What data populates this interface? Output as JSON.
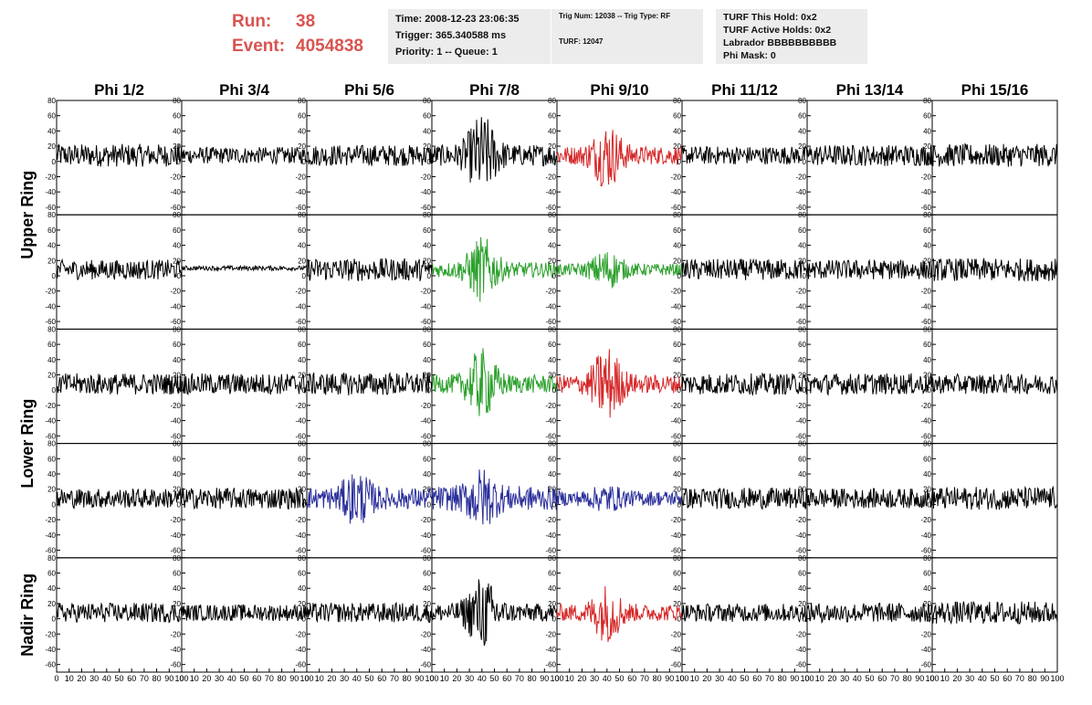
{
  "header": {
    "run_label": "Run:",
    "run_value": "38",
    "event_label": "Event:",
    "event_value": "4054838",
    "time_line": "Time: 2008-12-23 23:06:35",
    "trigger_line": "Trigger: 365.340588 ms",
    "priority_line": "Priority: 1 -- Queue: 1",
    "trig_num_line": "Trig Num: 12038 -- Trig Type: RF",
    "turf_line": "TURF: 12047",
    "turf_this_hold": "TURF This Hold: 0x2",
    "turf_active_holds": "TURF Active Holds: 0x2",
    "labrador": "Labrador BBBBBBBBBB",
    "phi_mask": "Phi Mask: 0"
  },
  "colors": {
    "background": "#ffffff",
    "axis": "#000000",
    "default_trace": "#000000",
    "red_trace": "#d62728",
    "green_trace": "#2ca02c",
    "blue_trace": "#2b2f9a",
    "run_text": "#d9534f",
    "info_box_bg": "#ececec"
  },
  "chart_data": {
    "type": "line",
    "phi_labels": [
      "Phi 1/2",
      "Phi 3/4",
      "Phi 5/6",
      "Phi 7/8",
      "Phi 9/10",
      "Phi 11/12",
      "Phi 13/14",
      "Phi 15/16"
    ],
    "ring_labels": [
      "Upper Ring",
      "Lower Ring",
      "Nadir Ring"
    ],
    "y_ticks": [
      "80",
      "60",
      "40",
      "20",
      "0",
      "-20",
      "-40",
      "-60"
    ],
    "x_tick_labels": [
      "0",
      "10",
      "20",
      "30",
      "40",
      "50",
      "60",
      "70",
      "80",
      "90",
      "100"
    ],
    "xlim": [
      0,
      100
    ],
    "ylim": [
      -70,
      80
    ],
    "grid": false,
    "x_per_panel_labels_note": "",
    "rows": 5,
    "cols": 8,
    "panels": [
      [
        {
          "style": "noise",
          "color": "default",
          "amp": 15
        },
        {
          "style": "noise",
          "color": "default",
          "amp": 11
        },
        {
          "style": "noise",
          "color": "default",
          "amp": 14
        },
        {
          "style": "burst",
          "color": "default",
          "amp": 14,
          "peak": 55
        },
        {
          "style": "burst",
          "color": "red",
          "amp": 12,
          "peak": 45
        },
        {
          "style": "noise",
          "color": "default",
          "amp": 12
        },
        {
          "style": "noise",
          "color": "default",
          "amp": 14
        },
        {
          "style": "noise",
          "color": "default",
          "amp": 15
        }
      ],
      [
        {
          "style": "noise",
          "color": "default",
          "amp": 13
        },
        {
          "style": "flat",
          "color": "default",
          "amp": 3,
          "offset": 10
        },
        {
          "style": "noise",
          "color": "default",
          "amp": 15
        },
        {
          "style": "burst",
          "color": "green",
          "amp": 10,
          "peak": 45
        },
        {
          "style": "burst",
          "color": "green",
          "amp": 8,
          "peak": 28
        },
        {
          "style": "noise",
          "color": "default",
          "amp": 14
        },
        {
          "style": "noise",
          "color": "default",
          "amp": 13
        },
        {
          "style": "noise",
          "color": "default",
          "amp": 15
        }
      ],
      [
        {
          "style": "noise",
          "color": "default",
          "amp": 14
        },
        {
          "style": "noise",
          "color": "default",
          "amp": 14
        },
        {
          "style": "noise",
          "color": "default",
          "amp": 15
        },
        {
          "style": "burst",
          "color": "green",
          "amp": 12,
          "peak": 48
        },
        {
          "style": "burst",
          "color": "red",
          "amp": 12,
          "peak": 52
        },
        {
          "style": "noise",
          "color": "default",
          "amp": 14
        },
        {
          "style": "noise",
          "color": "default",
          "amp": 14
        },
        {
          "style": "noise",
          "color": "default",
          "amp": 13
        }
      ],
      [
        {
          "style": "noise",
          "color": "default",
          "amp": 13
        },
        {
          "style": "noise",
          "color": "default",
          "amp": 14
        },
        {
          "style": "burst",
          "color": "blue",
          "amp": 14,
          "peak": 38
        },
        {
          "style": "burst",
          "color": "blue",
          "amp": 16,
          "peak": 42
        },
        {
          "style": "burst",
          "color": "blue",
          "amp": 10,
          "peak": 20
        },
        {
          "style": "noise",
          "color": "default",
          "amp": 14
        },
        {
          "style": "noise",
          "color": "default",
          "amp": 13
        },
        {
          "style": "noise",
          "color": "default",
          "amp": 15
        }
      ],
      [
        {
          "style": "noise",
          "color": "default",
          "amp": 13
        },
        {
          "style": "noise",
          "color": "default",
          "amp": 11
        },
        {
          "style": "noise",
          "color": "default",
          "amp": 13
        },
        {
          "style": "burst",
          "color": "default",
          "amp": 12,
          "peak": 50
        },
        {
          "style": "burst",
          "color": "red",
          "amp": 11,
          "peak": 40
        },
        {
          "style": "noise",
          "color": "default",
          "amp": 12
        },
        {
          "style": "noise",
          "color": "default",
          "amp": 13
        },
        {
          "style": "noise",
          "color": "default",
          "amp": 15
        }
      ]
    ]
  }
}
